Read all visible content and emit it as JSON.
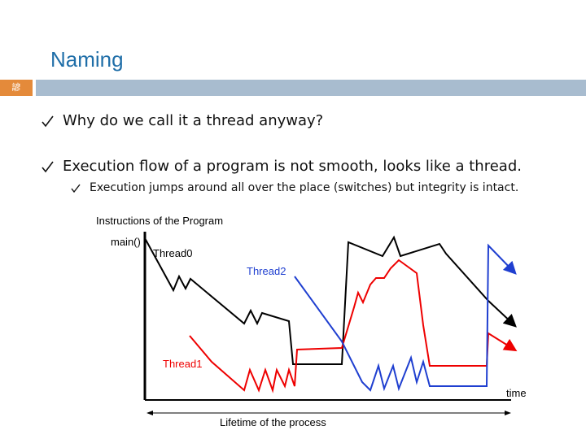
{
  "header": {
    "title": "Naming",
    "slide_number": "諺"
  },
  "bullets": [
    "Why do we call it a thread anyway?",
    "Execution flow of a program is not smooth, looks like a thread."
  ],
  "sub_bullets": [
    "Execution jumps around all over the place (switches) but integrity is intact."
  ],
  "diagram": {
    "y_label": "Instructions of the Program",
    "main_label": "main()",
    "threads": [
      "Thread0",
      "Thread1",
      "Thread2"
    ],
    "x_label": "time",
    "span_label": "Lifetime of the process"
  }
}
